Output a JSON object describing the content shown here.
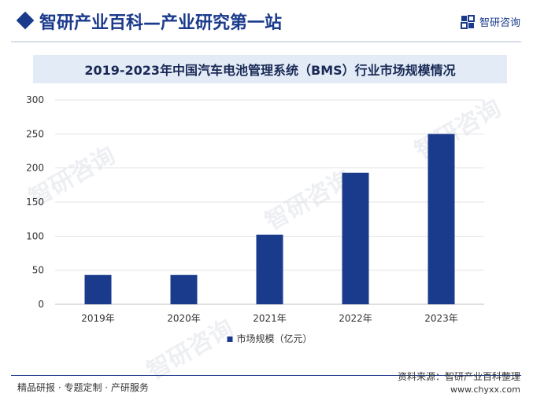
{
  "header": {
    "title": "智研产业百科—产业研究第一站",
    "logo_text": "智研咨询",
    "logo_icon": "zhiyan-logo-icon"
  },
  "chart_data": {
    "type": "bar",
    "title": "2019-2023年中国汽车电池管理系统（BMS）行业市场规模情况",
    "categories": [
      "2019年",
      "2020年",
      "2021年",
      "2022年",
      "2023年"
    ],
    "series": [
      {
        "name": "市场规模（亿元）",
        "values": [
          43,
          43,
          102,
          193,
          250
        ],
        "color": "#1a3a8c"
      }
    ],
    "ylim": [
      0,
      300
    ],
    "yticks": [
      "0",
      "50",
      "100",
      "150",
      "200",
      "250",
      "300"
    ],
    "grid": true,
    "legend": "bottom"
  },
  "footer": {
    "left": "精品研报 · 专题定制 · 产研服务",
    "source": "资料来源：智研产业百科整理",
    "url": "www.chyxx.com"
  },
  "watermark_text": "智研咨询"
}
